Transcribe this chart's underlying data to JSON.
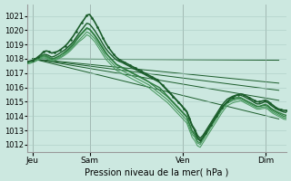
{
  "bg_color": "#cce8e0",
  "grid_color": "#aaccc4",
  "line_color_dark": "#1a5c2a",
  "line_color_mid": "#2e7d40",
  "line_color_light": "#4a9960",
  "title": "Pression niveau de la mer( hPa )",
  "ylabel_vals": [
    1012,
    1013,
    1014,
    1015,
    1016,
    1017,
    1018,
    1019,
    1020,
    1021
  ],
  "xlim": [
    0,
    100
  ],
  "ylim": [
    1011.5,
    1021.8
  ],
  "x_ticks": [
    2,
    24,
    60,
    92
  ],
  "x_labels": [
    "Jeu",
    "Sam",
    "Ven",
    "Dim"
  ],
  "series": [
    [
      1017.8,
      1017.85,
      1017.9,
      1018.0,
      1018.15,
      1018.3,
      1018.5,
      1018.55,
      1018.5,
      1018.4,
      1018.45,
      1018.5,
      1018.6,
      1018.75,
      1018.9,
      1019.1,
      1019.35,
      1019.6,
      1019.9,
      1020.2,
      1020.5,
      1020.75,
      1021.05,
      1021.1,
      1020.85,
      1020.55,
      1020.2,
      1019.85,
      1019.45,
      1019.1,
      1018.8,
      1018.55,
      1018.3,
      1018.1,
      1017.95,
      1017.85,
      1017.75,
      1017.65,
      1017.55,
      1017.45,
      1017.35,
      1017.25,
      1017.15,
      1017.05,
      1016.95,
      1016.85,
      1016.75,
      1016.65,
      1016.55,
      1016.35,
      1016.15,
      1015.95,
      1015.75,
      1015.55,
      1015.35,
      1015.15,
      1014.95,
      1014.75,
      1014.5,
      1014.3,
      1013.8,
      1013.3,
      1013.0,
      1012.5,
      1012.3,
      1012.5,
      1012.8,
      1013.1,
      1013.4,
      1013.7,
      1014.0,
      1014.3,
      1014.6,
      1014.8,
      1015.0,
      1015.2,
      1015.3,
      1015.4,
      1015.5,
      1015.55,
      1015.5,
      1015.4,
      1015.3,
      1015.2,
      1015.1,
      1015.0,
      1015.0,
      1015.05,
      1015.1,
      1015.05,
      1014.9,
      1014.75,
      1014.6,
      1014.5,
      1014.45,
      1014.4,
      1014.4
    ],
    [
      1017.8,
      1017.82,
      1017.88,
      1017.95,
      1018.05,
      1018.18,
      1018.3,
      1018.3,
      1018.22,
      1018.12,
      1018.18,
      1018.28,
      1018.4,
      1018.52,
      1018.65,
      1018.82,
      1019.0,
      1019.2,
      1019.48,
      1019.75,
      1020.0,
      1020.25,
      1020.48,
      1020.42,
      1020.2,
      1019.95,
      1019.65,
      1019.35,
      1019.02,
      1018.72,
      1018.48,
      1018.28,
      1018.08,
      1017.92,
      1017.82,
      1017.75,
      1017.65,
      1017.55,
      1017.45,
      1017.35,
      1017.25,
      1017.15,
      1017.05,
      1016.95,
      1016.85,
      1016.75,
      1016.65,
      1016.55,
      1016.45,
      1016.35,
      1016.18,
      1016.0,
      1015.8,
      1015.6,
      1015.38,
      1015.18,
      1014.98,
      1014.78,
      1014.55,
      1014.35,
      1013.88,
      1013.38,
      1013.08,
      1012.65,
      1012.45,
      1012.65,
      1012.95,
      1013.25,
      1013.55,
      1013.85,
      1014.15,
      1014.45,
      1014.75,
      1014.98,
      1015.18,
      1015.28,
      1015.38,
      1015.45,
      1015.48,
      1015.45,
      1015.38,
      1015.28,
      1015.18,
      1015.08,
      1014.95,
      1014.85,
      1014.85,
      1014.92,
      1015.0,
      1014.95,
      1014.78,
      1014.65,
      1014.52,
      1014.42,
      1014.35,
      1014.28,
      1014.25
    ],
    [
      1017.75,
      1017.78,
      1017.85,
      1017.92,
      1018.02,
      1018.12,
      1018.2,
      1018.15,
      1018.05,
      1017.95,
      1018.02,
      1018.12,
      1018.22,
      1018.35,
      1018.45,
      1018.6,
      1018.78,
      1018.98,
      1019.25,
      1019.5,
      1019.72,
      1019.92,
      1020.12,
      1020.05,
      1019.82,
      1019.58,
      1019.28,
      1018.98,
      1018.68,
      1018.38,
      1018.18,
      1017.98,
      1017.78,
      1017.58,
      1017.48,
      1017.38,
      1017.28,
      1017.18,
      1017.08,
      1016.98,
      1016.88,
      1016.78,
      1016.68,
      1016.58,
      1016.48,
      1016.38,
      1016.28,
      1016.18,
      1016.08,
      1015.98,
      1015.78,
      1015.58,
      1015.38,
      1015.18,
      1014.98,
      1014.78,
      1014.58,
      1014.38,
      1014.18,
      1013.98,
      1013.48,
      1012.98,
      1012.78,
      1012.38,
      1012.28,
      1012.48,
      1012.78,
      1013.08,
      1013.38,
      1013.68,
      1013.98,
      1014.28,
      1014.58,
      1014.78,
      1014.98,
      1015.08,
      1015.18,
      1015.28,
      1015.28,
      1015.28,
      1015.18,
      1015.08,
      1014.98,
      1014.88,
      1014.78,
      1014.68,
      1014.68,
      1014.75,
      1014.82,
      1014.75,
      1014.58,
      1014.45,
      1014.35,
      1014.25,
      1014.18,
      1014.1,
      1014.05
    ],
    [
      1017.78,
      1017.82,
      1017.88,
      1017.95,
      1018.05,
      1018.18,
      1018.28,
      1018.22,
      1018.12,
      1018.02,
      1018.05,
      1018.12,
      1018.22,
      1018.35,
      1018.52,
      1018.68,
      1018.88,
      1019.08,
      1019.35,
      1019.58,
      1019.78,
      1019.98,
      1020.18,
      1020.08,
      1019.88,
      1019.65,
      1019.38,
      1019.08,
      1018.78,
      1018.48,
      1018.22,
      1018.02,
      1017.82,
      1017.62,
      1017.52,
      1017.42,
      1017.32,
      1017.22,
      1017.12,
      1017.02,
      1016.92,
      1016.82,
      1016.72,
      1016.62,
      1016.52,
      1016.38,
      1016.22,
      1016.08,
      1015.92,
      1015.78,
      1015.62,
      1015.48,
      1015.32,
      1015.12,
      1014.92,
      1014.72,
      1014.52,
      1014.32,
      1014.12,
      1013.92,
      1013.42,
      1012.92,
      1012.62,
      1012.22,
      1012.12,
      1012.42,
      1012.72,
      1013.02,
      1013.32,
      1013.62,
      1013.92,
      1014.22,
      1014.52,
      1014.75,
      1014.98,
      1015.08,
      1015.18,
      1015.22,
      1015.28,
      1015.28,
      1015.18,
      1015.08,
      1014.98,
      1014.88,
      1014.78,
      1014.68,
      1014.68,
      1014.72,
      1014.75,
      1014.68,
      1014.5,
      1014.38,
      1014.28,
      1014.18,
      1014.08,
      1013.98,
      1013.95
    ],
    [
      1017.72,
      1017.75,
      1017.82,
      1017.88,
      1017.98,
      1018.08,
      1018.15,
      1018.1,
      1018.0,
      1017.9,
      1017.95,
      1018.02,
      1018.12,
      1018.22,
      1018.38,
      1018.52,
      1018.68,
      1018.88,
      1019.08,
      1019.28,
      1019.48,
      1019.68,
      1019.88,
      1019.78,
      1019.58,
      1019.38,
      1019.08,
      1018.78,
      1018.48,
      1018.18,
      1017.98,
      1017.78,
      1017.58,
      1017.38,
      1017.28,
      1017.18,
      1017.08,
      1016.98,
      1016.88,
      1016.78,
      1016.68,
      1016.58,
      1016.48,
      1016.38,
      1016.28,
      1016.18,
      1016.02,
      1015.88,
      1015.72,
      1015.58,
      1015.42,
      1015.28,
      1015.12,
      1014.92,
      1014.72,
      1014.52,
      1014.32,
      1014.12,
      1013.92,
      1013.72,
      1013.22,
      1012.72,
      1012.52,
      1012.12,
      1012.02,
      1012.32,
      1012.62,
      1012.92,
      1013.22,
      1013.52,
      1013.82,
      1014.12,
      1014.42,
      1014.65,
      1014.88,
      1014.98,
      1015.08,
      1015.12,
      1015.18,
      1015.18,
      1015.08,
      1014.98,
      1014.88,
      1014.78,
      1014.68,
      1014.58,
      1014.58,
      1014.62,
      1014.65,
      1014.58,
      1014.42,
      1014.28,
      1014.18,
      1014.08,
      1013.98,
      1013.88,
      1013.85
    ],
    [
      1017.65,
      1017.68,
      1017.75,
      1017.82,
      1017.92,
      1018.0,
      1018.08,
      1018.02,
      1017.92,
      1017.82,
      1017.88,
      1017.95,
      1018.05,
      1018.15,
      1018.28,
      1018.42,
      1018.58,
      1018.78,
      1018.98,
      1019.18,
      1019.32,
      1019.48,
      1019.68,
      1019.58,
      1019.38,
      1019.18,
      1018.88,
      1018.58,
      1018.28,
      1017.98,
      1017.78,
      1017.58,
      1017.38,
      1017.18,
      1017.08,
      1016.98,
      1016.88,
      1016.78,
      1016.68,
      1016.58,
      1016.48,
      1016.38,
      1016.28,
      1016.18,
      1016.08,
      1015.98,
      1015.82,
      1015.68,
      1015.52,
      1015.38,
      1015.22,
      1015.08,
      1014.92,
      1014.72,
      1014.52,
      1014.32,
      1014.12,
      1013.92,
      1013.72,
      1013.52,
      1013.02,
      1012.52,
      1012.28,
      1011.92,
      1011.82,
      1012.12,
      1012.42,
      1012.72,
      1013.02,
      1013.32,
      1013.62,
      1013.92,
      1014.22,
      1014.48,
      1014.72,
      1014.82,
      1014.92,
      1014.98,
      1015.02,
      1015.08,
      1014.98,
      1014.88,
      1014.78,
      1014.68,
      1014.58,
      1014.48,
      1014.48,
      1014.52,
      1014.55,
      1014.48,
      1014.32,
      1014.18,
      1014.08,
      1013.98,
      1013.88,
      1013.78,
      1013.75
    ]
  ],
  "straight_lines": [
    {
      "x0": 2,
      "y0": 1018.0,
      "x1": 97,
      "y1": 1013.8
    },
    {
      "x0": 2,
      "y0": 1018.0,
      "x1": 97,
      "y1": 1015.1
    },
    {
      "x0": 2,
      "y0": 1018.0,
      "x1": 97,
      "y1": 1015.8
    },
    {
      "x0": 2,
      "y0": 1018.0,
      "x1": 97,
      "y1": 1016.3
    },
    {
      "x0": 2,
      "y0": 1018.0,
      "x1": 97,
      "y1": 1017.9
    }
  ]
}
